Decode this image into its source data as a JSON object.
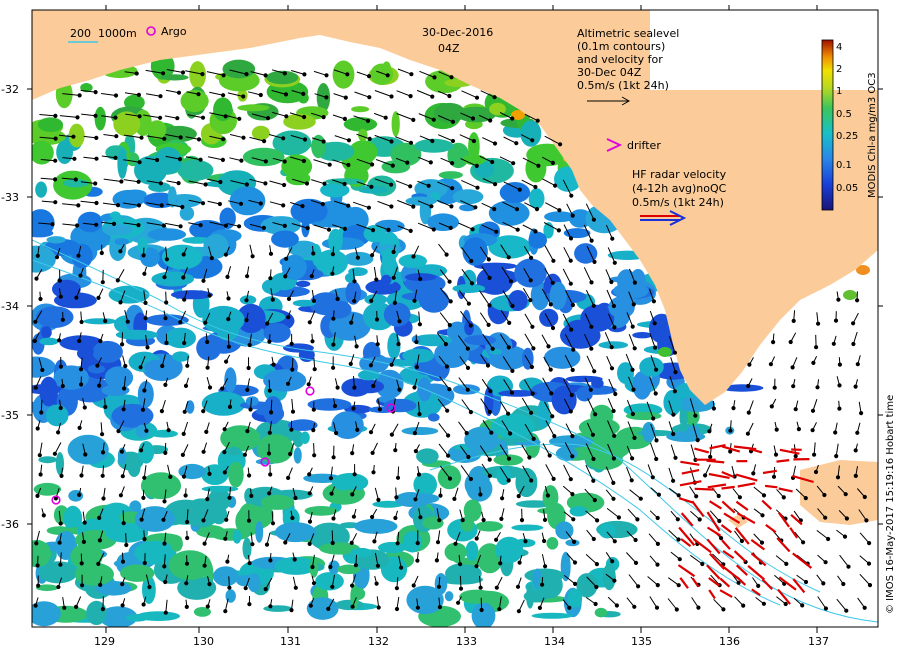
{
  "map": {
    "date_title": "30-Dec-2016",
    "time_title": "04Z",
    "scale_bar": {
      "left": "200",
      "right": "1000m"
    },
    "argo_label": "Argo",
    "drifter_label": "drifter",
    "altimetry_legend": [
      "Altimetric sealevel",
      "(0.1m contours)",
      "and velocity for",
      "30-Dec 04Z",
      "0.5m/s (1kt 24h)"
    ],
    "hf_radar_legend": [
      "HF radar velocity",
      "(4-12h avg)noQC",
      "0.5m/s (1kt 24h)"
    ],
    "colorbar": {
      "label": "MODIS Chl-a mg/m3 OC3",
      "ticks": [
        "4",
        "2",
        "1",
        "0.5",
        "0.25",
        "0.1",
        "0.05"
      ]
    },
    "credit": "© IMOS 16-May-2017 15:19:16 Hobart time",
    "lat_ticks": [
      "-32",
      "-33",
      "-34",
      "-35",
      "-36"
    ],
    "lon_ticks": [
      "129",
      "130",
      "131",
      "132",
      "133",
      "134",
      "135",
      "136",
      "137"
    ],
    "colors": {
      "land": "#fbcc9a",
      "ocean": "#ffffff",
      "argo": "#e000e0",
      "hf_arrow": "#dd0000",
      "contour": "#40c8e8"
    }
  }
}
